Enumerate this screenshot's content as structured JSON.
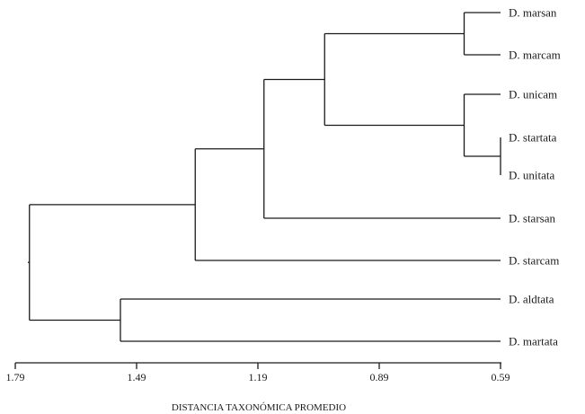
{
  "axis": {
    "title": "DISTANCIA TAXONÓMICA PROMEDIO",
    "ticks": [
      "1.79",
      "1.49",
      "1.19",
      "0.89",
      "0.59"
    ],
    "tick_values": [
      1.79,
      1.49,
      1.19,
      0.89,
      0.59
    ],
    "range": [
      1.79,
      0.59
    ]
  },
  "leaves": [
    "D. marsan",
    "D. marcam",
    "D. unicam",
    "D. startata",
    "D. unitata",
    "D. starsan",
    "D. starcam",
    "D. aldtata",
    "D. martata"
  ],
  "clusters": [
    {
      "children": [
        3,
        4
      ],
      "height": 0.59
    },
    {
      "children": [
        0,
        1
      ],
      "height": 0.68
    },
    {
      "children": [
        2,
        9
      ],
      "height": 0.68
    },
    {
      "children": [
        10,
        11
      ],
      "height": 1.025
    },
    {
      "children": [
        12,
        5
      ],
      "height": 1.175
    },
    {
      "children": [
        13,
        6
      ],
      "height": 1.345
    },
    {
      "children": [
        7,
        8
      ],
      "height": 1.53
    },
    {
      "children": [
        14,
        15
      ],
      "height": 1.755
    }
  ],
  "root_stub_height": 1.79,
  "colors": {
    "line": "#1a1a1a",
    "background": "#ffffff"
  }
}
